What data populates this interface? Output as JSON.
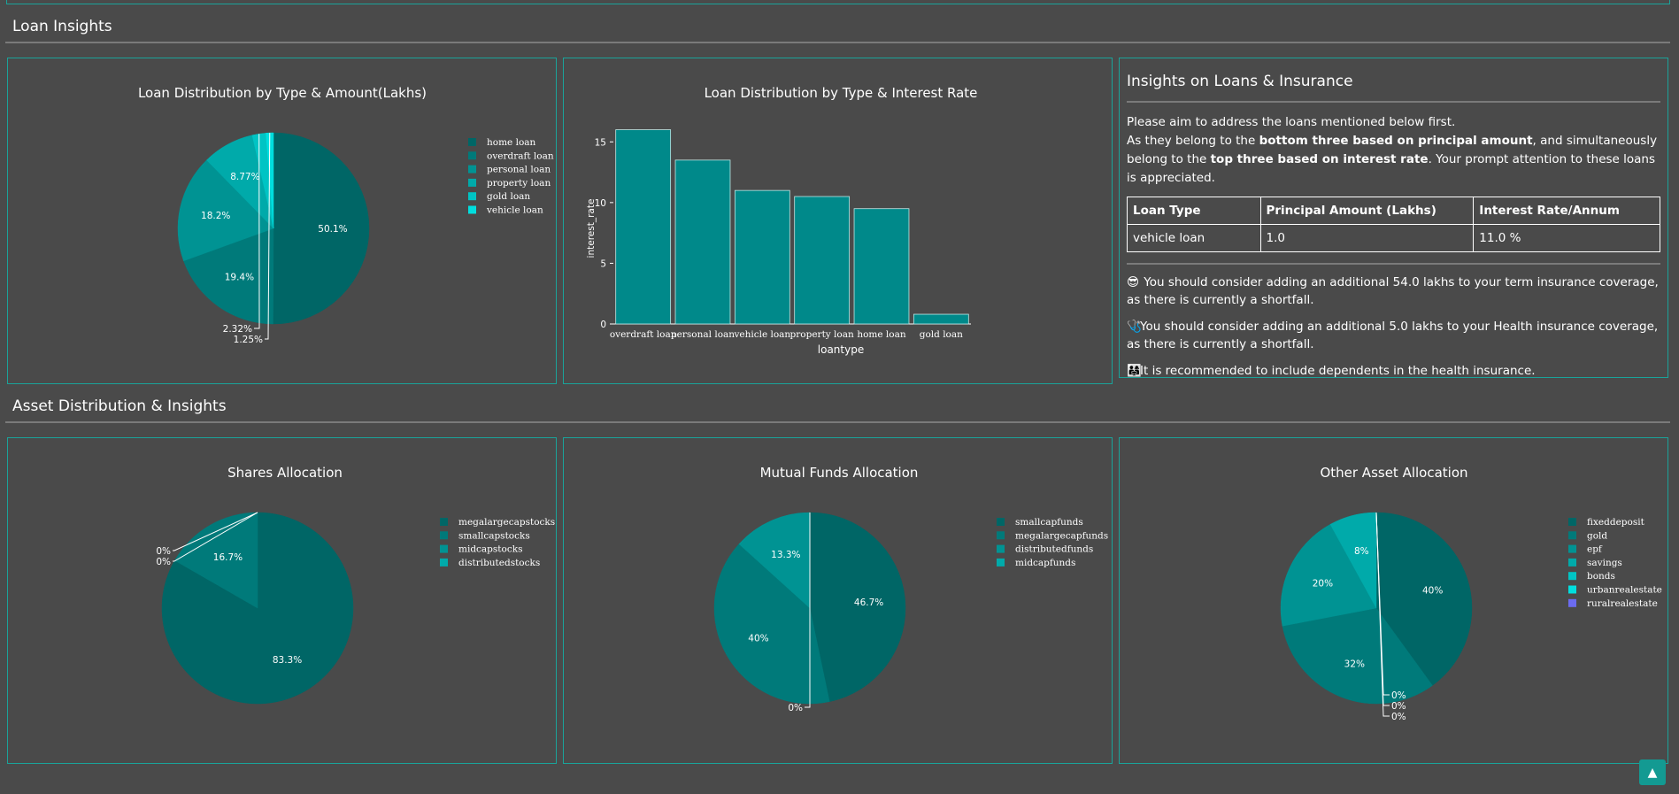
{
  "sections": {
    "loan_title": "Loan Insights",
    "asset_title": "Asset Distribution & Insights"
  },
  "loan_amount_chart": {
    "title": "Loan Distribution by Type & Amount(Lakhs)",
    "legend": [
      "home loan",
      "overdraft loan",
      "personal loan",
      "property loan",
      "gold loan",
      "vehicle loan"
    ]
  },
  "interest_chart": {
    "title": "Loan Distribution by Type & Interest Rate",
    "xlabel": "loantype",
    "ylabel": "interest_rate"
  },
  "shares_chart": {
    "title": "Shares Allocation",
    "legend": [
      "megalargecapstocks",
      "smallcapstocks",
      "midcapstocks",
      "distributedstocks"
    ]
  },
  "mf_chart": {
    "title": "Mutual Funds Allocation",
    "legend": [
      "smallcapfunds",
      "megalargecapfunds",
      "distributedfunds",
      "midcapfunds"
    ]
  },
  "other_chart": {
    "title": "Other Asset Allocation",
    "legend": [
      "fixeddeposit",
      "gold",
      "epf",
      "savings",
      "bonds",
      "urbanrealestate",
      "ruralrealestate"
    ]
  },
  "insights": {
    "title": "Insights on Loans & Insurance",
    "intro_1": "Please aim to address the loans mentioned below first.",
    "intro_2a": "As they belong to the ",
    "intro_2b": "bottom three based on principal amount",
    "intro_2c": ", and simultaneously belong to the ",
    "intro_2d": "top three based on interest rate",
    "intro_2e": ". Your prompt attention to these loans is appreciated.",
    "table": {
      "headers": [
        "Loan Type",
        "Principal Amount (Lakhs)",
        "Interest Rate/Annum"
      ],
      "rows": [
        [
          "vehicle loan",
          "1.0",
          "11.0 %"
        ]
      ]
    },
    "messages": [
      {
        "icon": "😎",
        "text": "You should consider adding an additional 54.0 lakhs to your term insurance coverage, as there is currently a shortfall."
      },
      {
        "icon": "🩺",
        "text": "You should consider adding an additional 5.0 lakhs to your Health insurance coverage, as there is currently a shortfall."
      },
      {
        "icon": "👨‍👩‍👧",
        "text": "It is recommended to include dependents in the health insurance."
      }
    ]
  },
  "colors": {
    "background": "#4a4a4a",
    "border": "#1aa39a",
    "bar": "#00898a",
    "slice1": "#006666",
    "slice2": "#007a7a",
    "slice3": "#009393",
    "slice4": "#00aaaa",
    "slice5": "#00c4c4",
    "slice6": "#00dede",
    "slice7": "#6b6bf0"
  },
  "chart_data": [
    {
      "type": "pie",
      "title": "Loan Distribution by Type & Amount(Lakhs)",
      "labels": [
        "home loan",
        "overdraft loan",
        "personal loan",
        "property loan",
        "gold loan",
        "vehicle loan"
      ],
      "values": [
        50.1,
        19.4,
        18.2,
        8.77,
        2.32,
        1.25
      ],
      "value_labels": [
        "50.1%",
        "19.4%",
        "18.2%",
        "8.77%",
        "2.32%",
        "1.25%"
      ],
      "legend": "right"
    },
    {
      "type": "bar",
      "title": "Loan Distribution by Type & Interest Rate",
      "categories": [
        "overdraft loan",
        "personal loan",
        "vehicle loan",
        "property loan",
        "home loan",
        "gold loan"
      ],
      "values": [
        16,
        13.5,
        11,
        10.5,
        9.5,
        0.8
      ],
      "xlabel": "loantype",
      "ylabel": "interest_rate",
      "yticks": [
        "0",
        "5",
        "10",
        "15"
      ],
      "ylim": [
        0,
        17.5
      ]
    },
    {
      "type": "pie",
      "title": "Shares Allocation",
      "labels": [
        "megalargecapstocks",
        "smallcapstocks",
        "midcapstocks",
        "distributedstocks"
      ],
      "values": [
        83.3,
        16.7,
        0,
        0
      ],
      "value_labels": [
        "83.3%",
        "16.7%",
        "0%",
        "0%"
      ],
      "legend": "right"
    },
    {
      "type": "pie",
      "title": "Mutual Funds Allocation",
      "labels": [
        "smallcapfunds",
        "megalargecapfunds",
        "distributedfunds",
        "midcapfunds"
      ],
      "values": [
        46.7,
        40,
        13.3,
        0
      ],
      "value_labels": [
        "46.7%",
        "40%",
        "13.3%",
        "0%"
      ],
      "legend": "right"
    },
    {
      "type": "pie",
      "title": "Other Asset Allocation",
      "labels": [
        "fixeddeposit",
        "gold",
        "epf",
        "savings",
        "bonds",
        "urbanrealestate",
        "ruralrealestate"
      ],
      "values": [
        40,
        32,
        20,
        8,
        0,
        0,
        0
      ],
      "value_labels": [
        "40%",
        "32%",
        "20%",
        "8%",
        "0%",
        "0%",
        "0%"
      ],
      "legend": "right"
    }
  ]
}
